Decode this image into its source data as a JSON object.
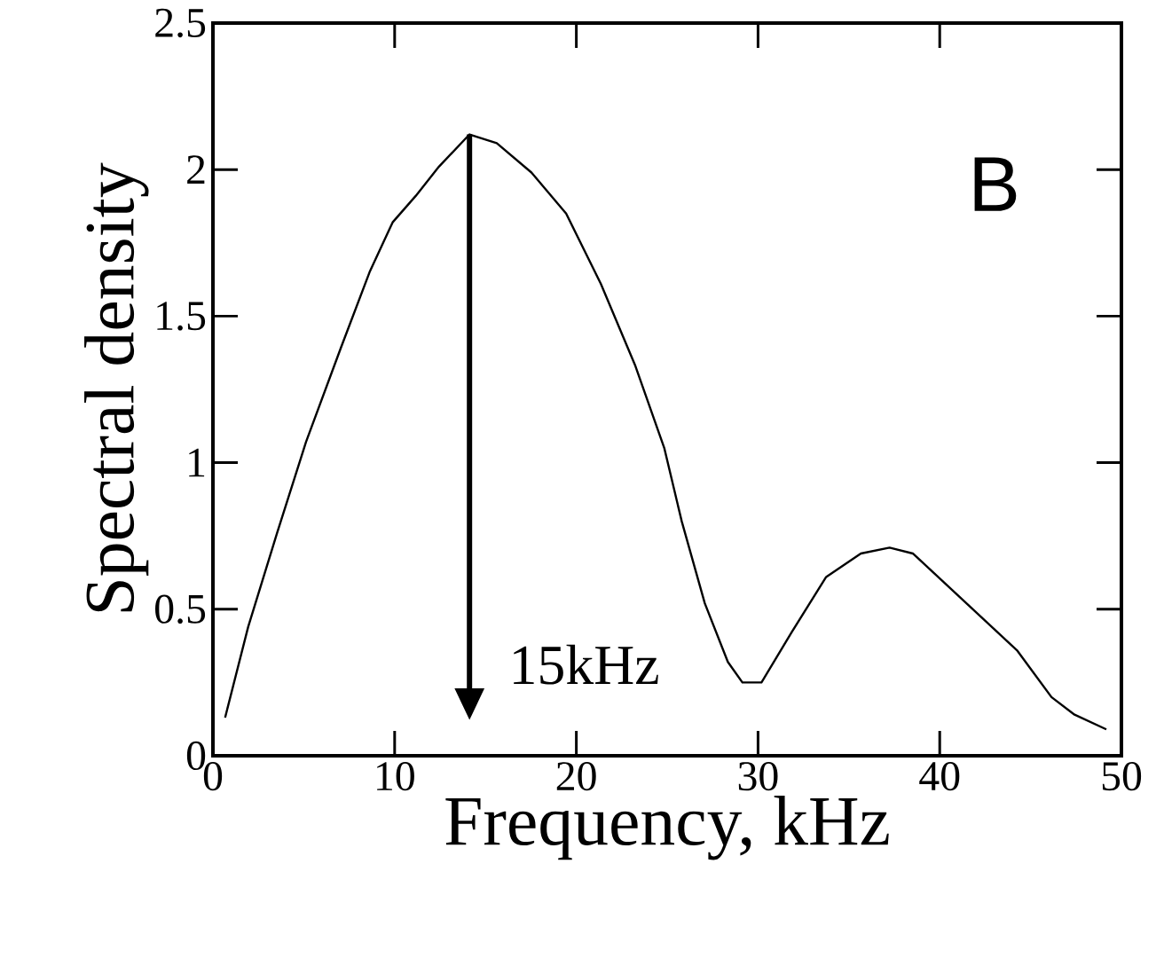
{
  "chart_data": {
    "type": "line",
    "xlabel": "Frequency, kHz",
    "ylabel": "Spectral density",
    "x": [
      0.67,
      1.94,
      3.53,
      5.12,
      7.03,
      8.62,
      9.89,
      11.16,
      12.44,
      14.12,
      15.62,
      17.53,
      19.44,
      21.35,
      23.25,
      24.84,
      25.8,
      27.07,
      28.34,
      29.14,
      30.19,
      31.84,
      33.75,
      35.66,
      37.24,
      38.52,
      40.43,
      42.34,
      44.25,
      46.15,
      47.42,
      49.17
    ],
    "series": [
      {
        "color": "#000000",
        "values": [
          0.13,
          0.44,
          0.76,
          1.07,
          1.39,
          1.65,
          1.82,
          1.91,
          2.01,
          2.12,
          2.09,
          1.99,
          1.85,
          1.61,
          1.33,
          1.05,
          0.8,
          0.52,
          0.32,
          0.25,
          0.25,
          0.42,
          0.61,
          0.69,
          0.71,
          0.69,
          0.58,
          0.47,
          0.36,
          0.2,
          0.14,
          0.09
        ]
      }
    ],
    "xlim": [
      0,
      50
    ],
    "ylim": [
      0,
      2.5
    ],
    "xticks": [
      0,
      10,
      20,
      30,
      40,
      50
    ],
    "yticks": [
      0,
      0.5,
      1,
      1.5,
      2,
      2.5
    ],
    "grid": false,
    "marker": "none",
    "line_style": "solid",
    "annotations": [
      "15kHz",
      "B"
    ]
  }
}
